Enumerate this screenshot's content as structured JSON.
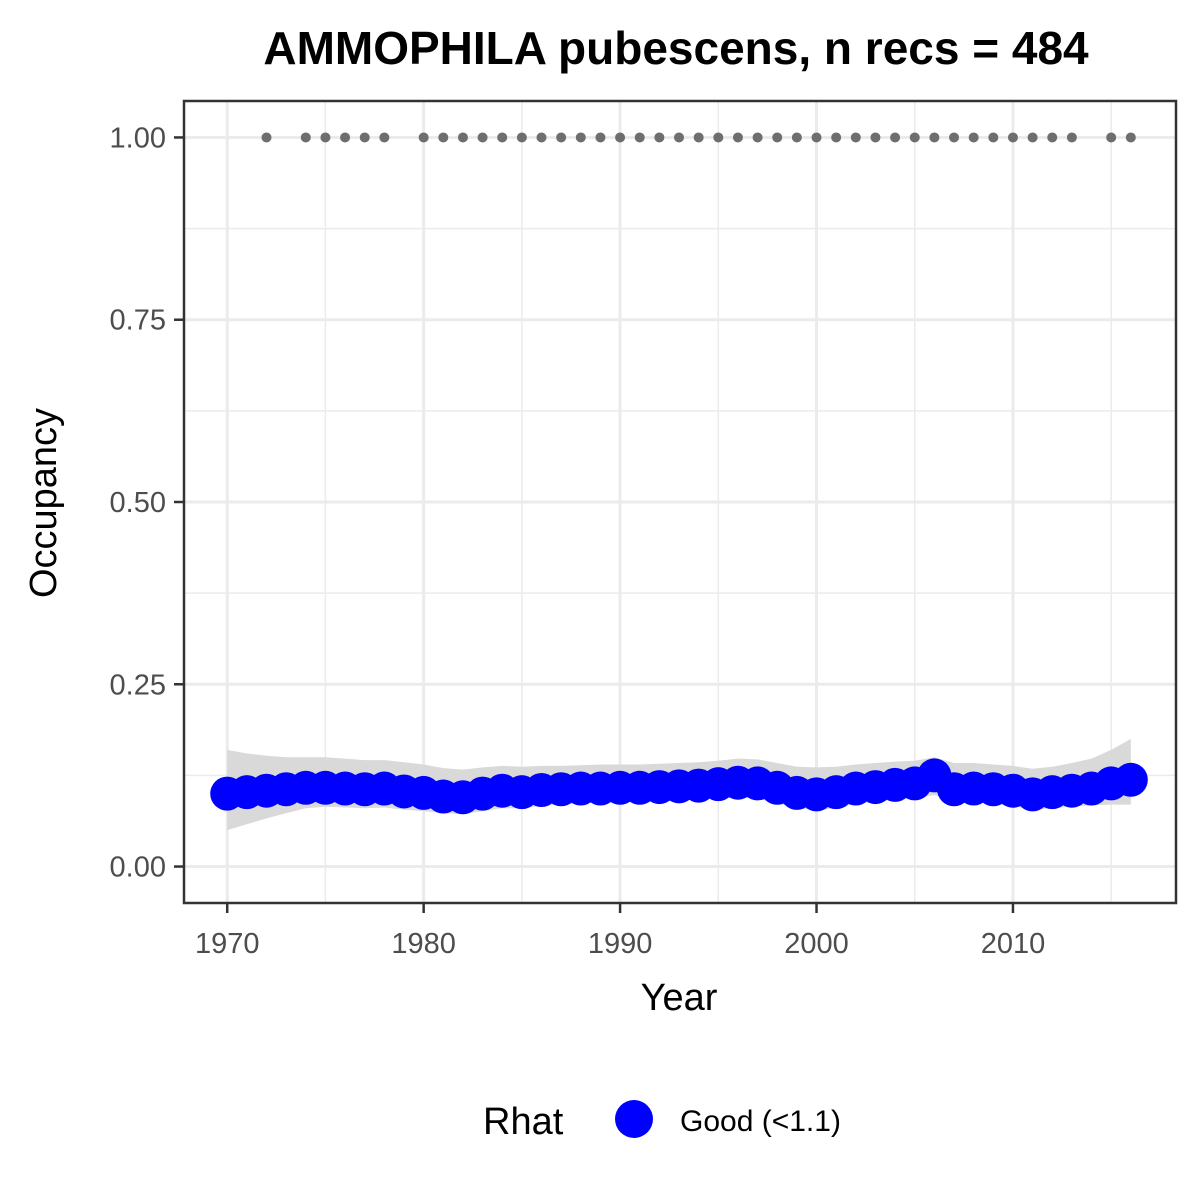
{
  "chart_data": {
    "type": "line",
    "title": "AMMOPHILA pubescens, n recs = 484",
    "xlabel": "Year",
    "ylabel": "Occupancy",
    "xlim": [
      1967.8,
      2018.3
    ],
    "ylim": [
      -0.05,
      1.05
    ],
    "x_ticks": [
      1970,
      1980,
      1990,
      2000,
      2010
    ],
    "y_ticks": [
      0.0,
      0.25,
      0.5,
      0.75,
      1.0
    ],
    "y_tick_labels": [
      "0.00",
      "0.25",
      "0.50",
      "0.75",
      "1.00"
    ],
    "grid": true,
    "legend": {
      "title": "Rhat",
      "position": "bottom",
      "entries": [
        {
          "label": "Good (<1.1)",
          "color": "#0000ff"
        }
      ]
    },
    "colors": {
      "occupancy": "#0000ff",
      "ribbon": "#d9d9d9",
      "records": "#6e6e6e",
      "grid": "#ebebeb",
      "panel_border": "#333333"
    },
    "series": [
      {
        "name": "Good (<1.1)",
        "x": [
          1970,
          1971,
          1972,
          1973,
          1974,
          1975,
          1976,
          1977,
          1978,
          1979,
          1980,
          1981,
          1982,
          1983,
          1984,
          1985,
          1986,
          1987,
          1988,
          1989,
          1990,
          1991,
          1992,
          1993,
          1994,
          1995,
          1996,
          1997,
          1998,
          1999,
          2000,
          2001,
          2002,
          2003,
          2004,
          2005,
          2006,
          2007,
          2008,
          2009,
          2010,
          2011,
          2012,
          2013,
          2014,
          2015,
          2016
        ],
        "y": [
          0.1,
          0.102,
          0.104,
          0.106,
          0.108,
          0.108,
          0.107,
          0.106,
          0.107,
          0.103,
          0.101,
          0.096,
          0.095,
          0.1,
          0.104,
          0.102,
          0.105,
          0.106,
          0.107,
          0.107,
          0.108,
          0.108,
          0.109,
          0.11,
          0.111,
          0.113,
          0.115,
          0.114,
          0.108,
          0.101,
          0.099,
          0.102,
          0.107,
          0.109,
          0.112,
          0.114,
          0.125,
          0.106,
          0.107,
          0.106,
          0.104,
          0.099,
          0.102,
          0.104,
          0.107,
          0.114,
          0.119
        ],
        "lower": [
          0.05,
          0.058,
          0.066,
          0.073,
          0.08,
          0.082,
          0.081,
          0.08,
          0.081,
          0.078,
          0.076,
          0.073,
          0.072,
          0.076,
          0.08,
          0.08,
          0.083,
          0.085,
          0.087,
          0.088,
          0.089,
          0.09,
          0.091,
          0.092,
          0.093,
          0.094,
          0.095,
          0.093,
          0.087,
          0.08,
          0.077,
          0.08,
          0.086,
          0.089,
          0.092,
          0.094,
          0.098,
          0.092,
          0.089,
          0.086,
          0.083,
          0.078,
          0.08,
          0.082,
          0.084,
          0.085,
          0.085
        ],
        "upper": [
          0.16,
          0.155,
          0.152,
          0.15,
          0.15,
          0.15,
          0.148,
          0.146,
          0.146,
          0.143,
          0.14,
          0.135,
          0.133,
          0.136,
          0.138,
          0.137,
          0.138,
          0.138,
          0.139,
          0.14,
          0.14,
          0.14,
          0.141,
          0.142,
          0.143,
          0.145,
          0.148,
          0.147,
          0.142,
          0.137,
          0.136,
          0.137,
          0.14,
          0.142,
          0.144,
          0.145,
          0.15,
          0.142,
          0.142,
          0.14,
          0.138,
          0.134,
          0.137,
          0.142,
          0.148,
          0.16,
          0.175
        ]
      }
    ],
    "records": {
      "y": 1.0,
      "x": [
        1972,
        1974,
        1975,
        1976,
        1977,
        1978,
        1980,
        1981,
        1982,
        1983,
        1984,
        1985,
        1986,
        1987,
        1988,
        1989,
        1990,
        1991,
        1992,
        1993,
        1994,
        1995,
        1996,
        1997,
        1998,
        1999,
        2000,
        2001,
        2002,
        2003,
        2004,
        2005,
        2006,
        2007,
        2008,
        2009,
        2010,
        2011,
        2012,
        2013,
        2015,
        2016
      ]
    }
  }
}
